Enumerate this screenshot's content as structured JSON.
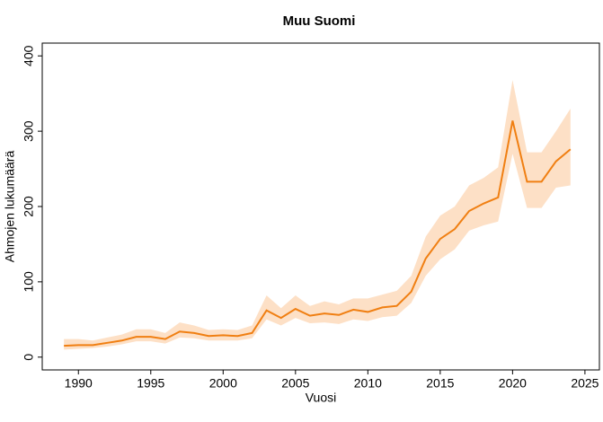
{
  "chart_data": {
    "type": "line",
    "title": "Muu Suomi",
    "x_label": "Vuosi",
    "y_label": "Ahmojen lukumäärä",
    "x": [
      1989,
      1990,
      1991,
      1992,
      1993,
      1994,
      1995,
      1996,
      1997,
      1998,
      1999,
      2000,
      2001,
      2002,
      2003,
      2004,
      2005,
      2006,
      2007,
      2008,
      2009,
      2010,
      2011,
      2012,
      2013,
      2014,
      2015,
      2016,
      2017,
      2018,
      2019,
      2020,
      2021,
      2022,
      2023,
      2024
    ],
    "values": [
      15,
      16,
      16,
      19,
      22,
      27,
      27,
      24,
      34,
      32,
      28,
      29,
      28,
      32,
      62,
      52,
      64,
      55,
      58,
      56,
      63,
      60,
      66,
      68,
      87,
      131,
      157,
      170,
      194,
      204,
      212,
      314,
      233,
      233,
      260,
      276
    ],
    "lower": [
      10,
      11,
      12,
      14,
      17,
      21,
      21,
      18,
      26,
      25,
      22,
      22,
      22,
      25,
      50,
      42,
      52,
      45,
      46,
      44,
      50,
      48,
      53,
      55,
      72,
      108,
      130,
      143,
      168,
      175,
      180,
      270,
      198,
      198,
      225,
      228
    ],
    "upper": [
      24,
      24,
      22,
      26,
      30,
      37,
      37,
      32,
      46,
      42,
      36,
      37,
      36,
      42,
      82,
      65,
      82,
      68,
      74,
      70,
      78,
      78,
      83,
      88,
      108,
      160,
      188,
      200,
      228,
      238,
      252,
      368,
      272,
      272,
      300,
      330
    ],
    "color": "#f07f12",
    "band_color": "#fde0c6",
    "xlim": [
      1987.5,
      2026
    ],
    "xticks": [
      1990,
      1995,
      2000,
      2005,
      2010,
      2015,
      2020,
      2025
    ],
    "ylim": [
      -17,
      417
    ],
    "yticks": [
      0,
      100,
      200,
      300,
      400
    ]
  }
}
